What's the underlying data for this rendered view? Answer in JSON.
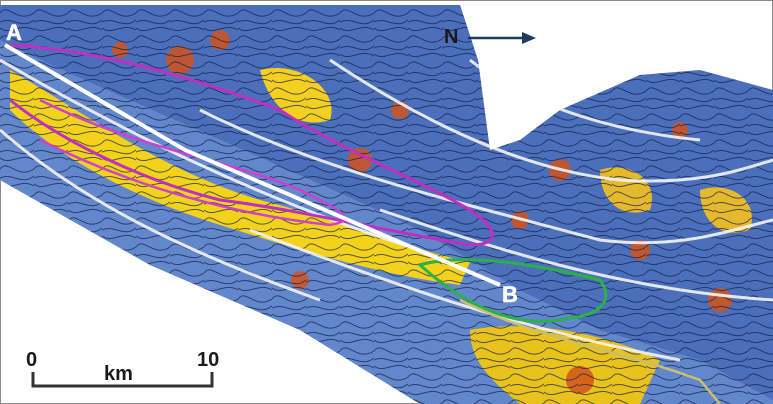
{
  "profile": {
    "start": "A",
    "end": "B"
  },
  "north": "N",
  "scale_bar": {
    "start": 0,
    "end": 10,
    "unit": "km"
  }
}
